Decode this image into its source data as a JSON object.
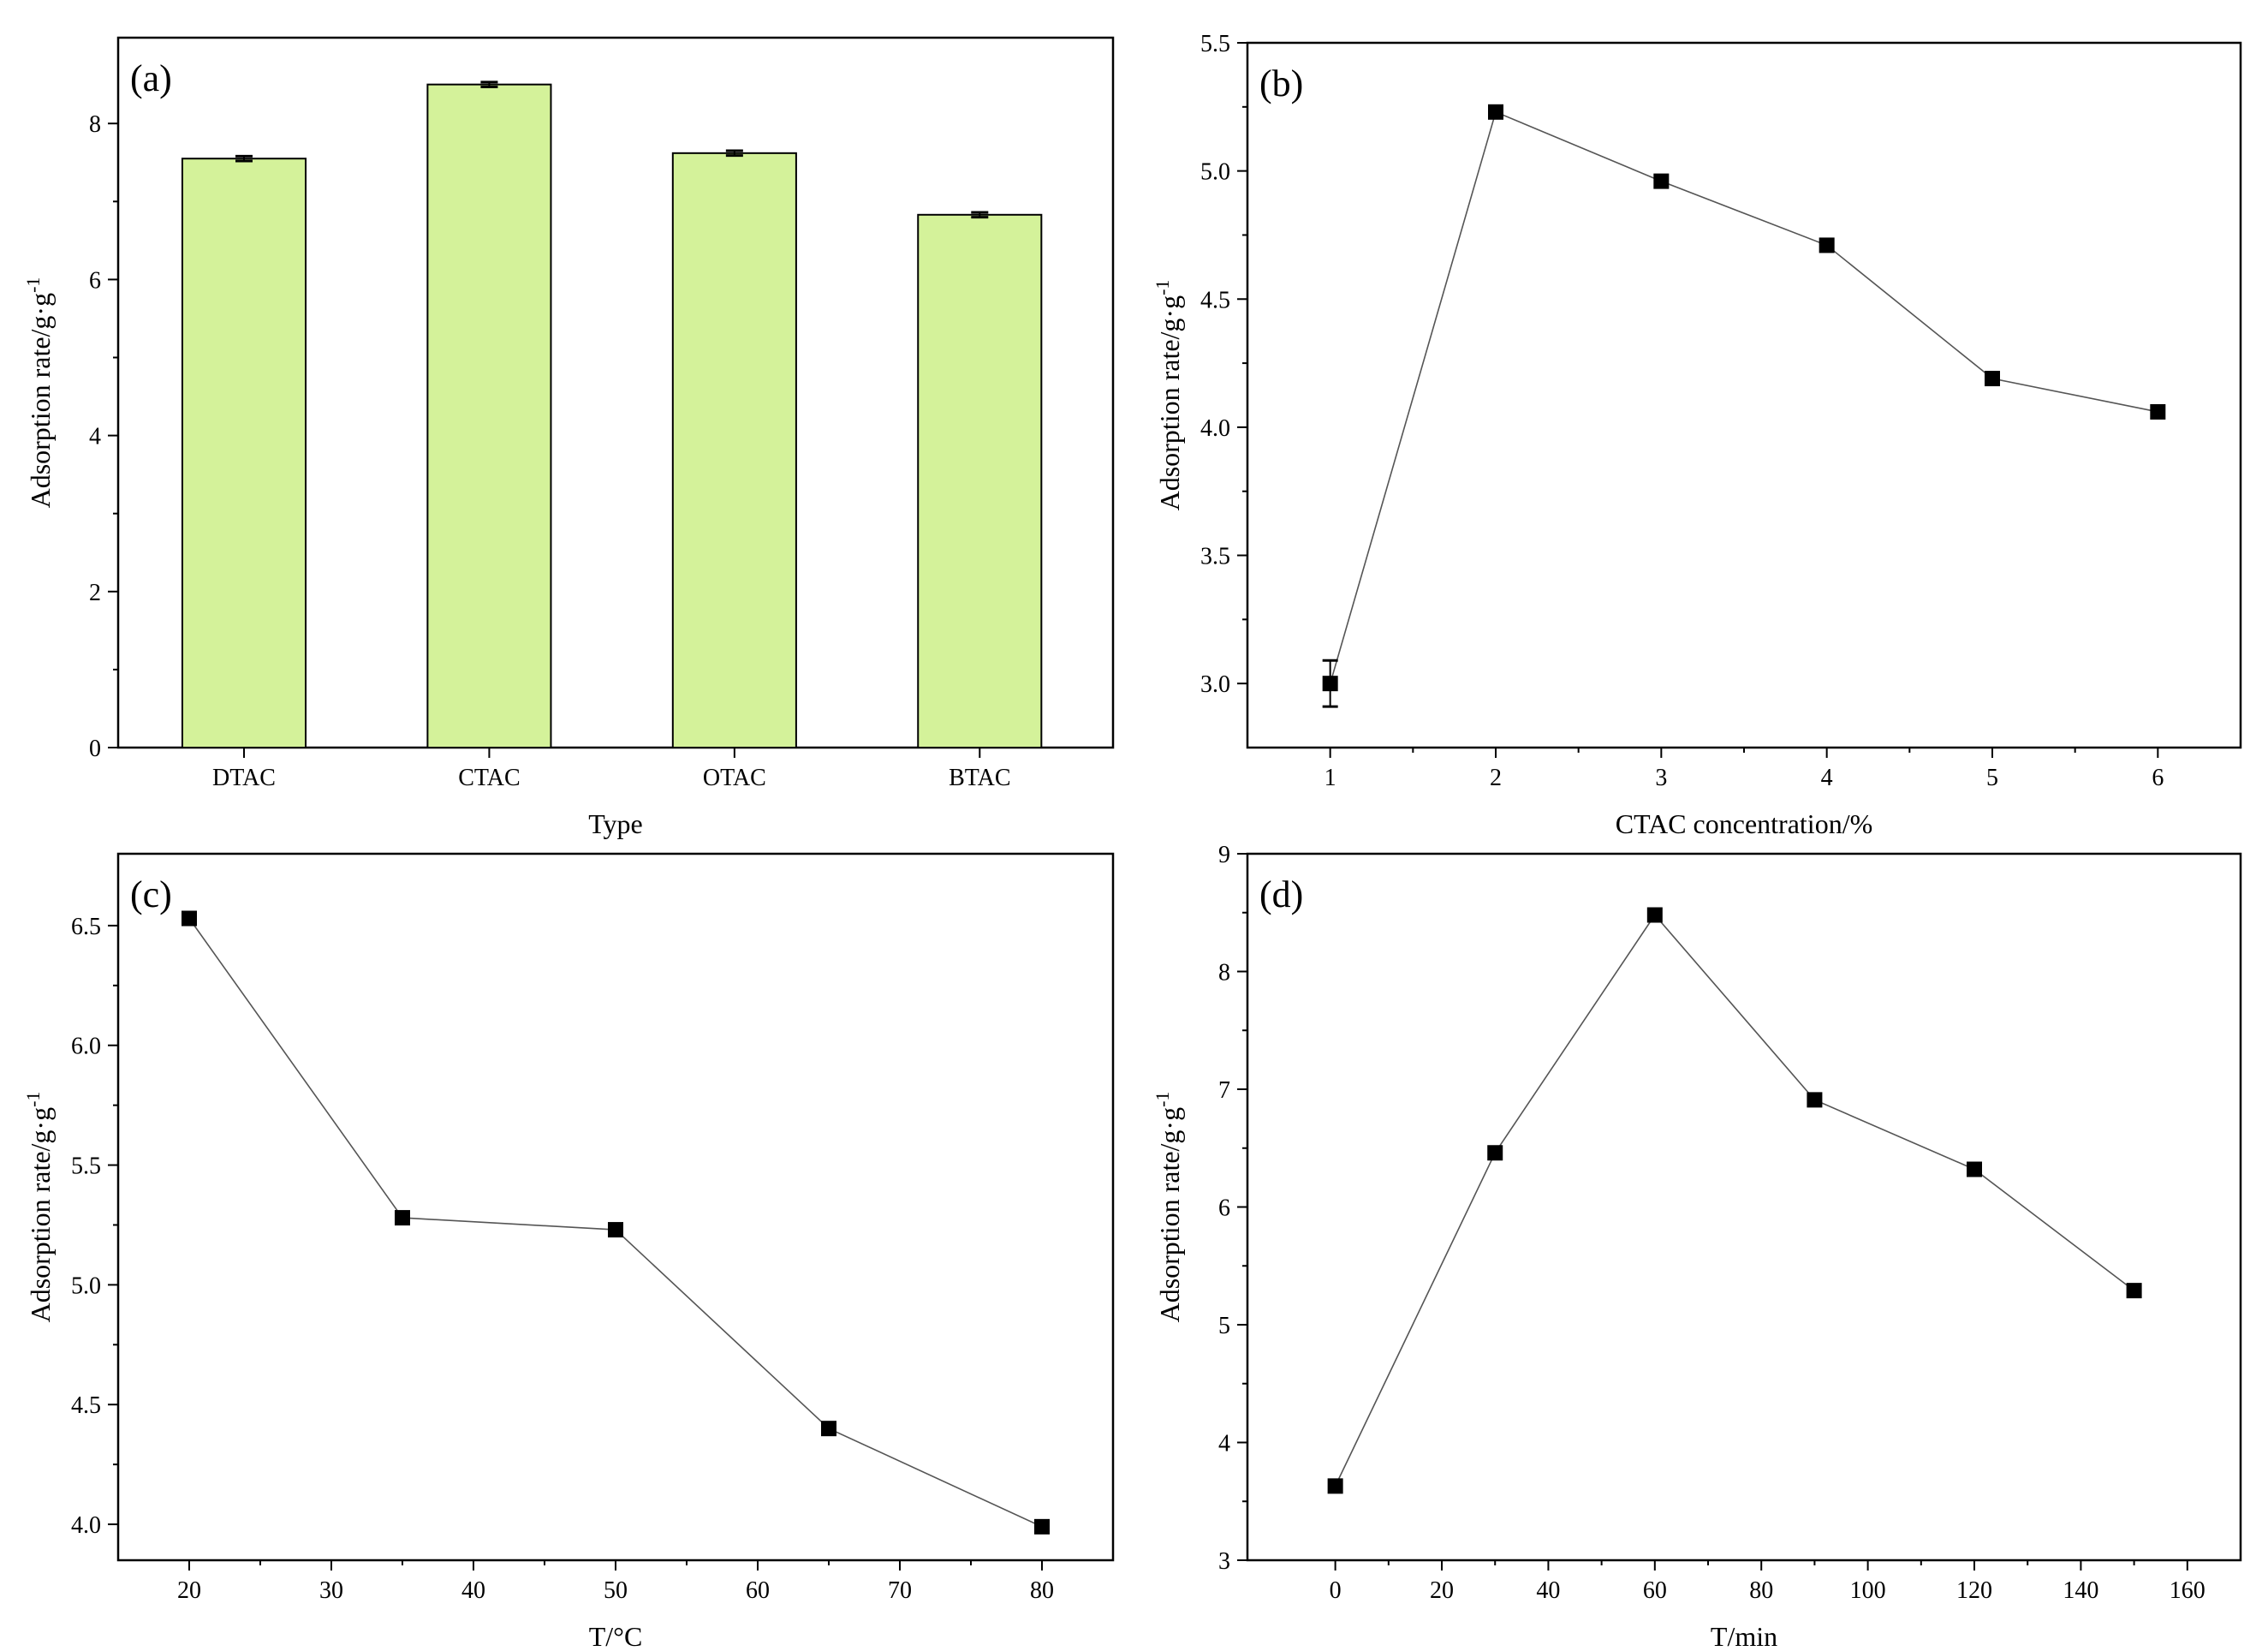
{
  "colors": {
    "bar_fill": "#d4f29a",
    "bar_stroke": "#000000",
    "line": "#555555",
    "marker": "#000000"
  },
  "chart_data": [
    {
      "id": "a",
      "panel_label": "(a)",
      "type": "bar",
      "categories": [
        "DTAC",
        "CTAC",
        "OTAC",
        "BTAC"
      ],
      "values": [
        7.55,
        8.5,
        7.62,
        6.83
      ],
      "errors": [
        0.02,
        0.02,
        0.02,
        0.02
      ],
      "xlabel": "Type",
      "ylabel": "Adsorption rate/g·g",
      "ylabel_sup": "-1",
      "ylim": [
        0,
        9.1
      ],
      "yticks": [
        0,
        2,
        4,
        6,
        8
      ],
      "ytick_labels": [
        "0",
        "2",
        "4",
        "6",
        "8"
      ]
    },
    {
      "id": "b",
      "panel_label": "(b)",
      "type": "line",
      "x": [
        1,
        2,
        3,
        4,
        5,
        6
      ],
      "y": [
        3.0,
        5.23,
        4.96,
        4.71,
        4.19,
        4.06
      ],
      "errors": [
        0.09,
        0,
        0,
        0,
        0,
        0
      ],
      "xlabel": "CTAC concentration/%",
      "ylabel": "Adsorption rate/g·g",
      "ylabel_sup": "-1",
      "xlim": [
        0.5,
        6.5
      ],
      "xticks": [
        1,
        2,
        3,
        4,
        5,
        6
      ],
      "xtick_labels": [
        "1",
        "2",
        "3",
        "4",
        "5",
        "6"
      ],
      "ylim": [
        2.75,
        5.5
      ],
      "yticks": [
        3.0,
        3.5,
        4.0,
        4.5,
        5.0,
        5.5
      ],
      "ytick_labels": [
        "3.0",
        "3.5",
        "4.0",
        "4.5",
        "5.0",
        "5.5"
      ]
    },
    {
      "id": "c",
      "panel_label": "(c)",
      "type": "line",
      "x": [
        20,
        35,
        50,
        65,
        80
      ],
      "y": [
        6.53,
        5.28,
        5.23,
        4.4,
        3.99
      ],
      "xlabel": "T/°C",
      "ylabel": "Adsorption rate/g·g",
      "ylabel_sup": "-1",
      "xlim": [
        15,
        85
      ],
      "xticks": [
        20,
        30,
        40,
        50,
        60,
        70,
        80
      ],
      "xtick_labels": [
        "20",
        "30",
        "40",
        "50",
        "60",
        "70",
        "80"
      ],
      "ylim": [
        3.85,
        6.8
      ],
      "yticks": [
        4.0,
        4.5,
        5.0,
        5.5,
        6.0,
        6.5
      ],
      "ytick_labels": [
        "4.0",
        "4.5",
        "5.0",
        "5.5",
        "6.0",
        "6.5"
      ]
    },
    {
      "id": "d",
      "panel_label": "(d)",
      "type": "line",
      "x": [
        0,
        30,
        60,
        90,
        120,
        150
      ],
      "y": [
        3.63,
        6.46,
        8.48,
        6.91,
        6.32,
        5.29
      ],
      "xlabel": "T/min",
      "ylabel": "Adsorption rate/g·g",
      "ylabel_sup": "-1",
      "xlim": [
        -16.5,
        170
      ],
      "xticks": [
        0,
        20,
        40,
        60,
        80,
        100,
        120,
        140,
        160
      ],
      "xtick_labels": [
        "0",
        "20",
        "40",
        "60",
        "80",
        "100",
        "120",
        "140",
        "160"
      ],
      "ylim": [
        3,
        9
      ],
      "yticks": [
        3,
        4,
        5,
        6,
        7,
        8,
        9
      ],
      "ytick_labels": [
        "3",
        "4",
        "5",
        "6",
        "7",
        "8",
        "9"
      ]
    }
  ]
}
